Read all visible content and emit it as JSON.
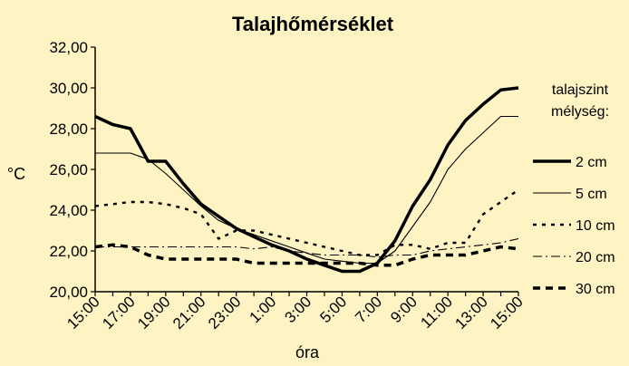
{
  "chart_data": {
    "type": "line",
    "title": "Talajhőmérséklet",
    "xlabel": "óra",
    "ylabel": "°C",
    "legend_title_line1": "talajszint",
    "legend_title_line2": "mélység:",
    "legend_position": "right",
    "grid": false,
    "ylim": [
      20,
      32
    ],
    "y_ticks": [
      "20,00",
      "22,00",
      "24,00",
      "26,00",
      "28,00",
      "30,00",
      "32,00"
    ],
    "x": [
      "15:00",
      "16:00",
      "17:00",
      "18:00",
      "19:00",
      "20:00",
      "21:00",
      "22:00",
      "23:00",
      "0:00",
      "1:00",
      "2:00",
      "3:00",
      "4:00",
      "5:00",
      "6:00",
      "7:00",
      "8:00",
      "9:00",
      "10:00",
      "11:00",
      "12:00",
      "13:00",
      "14:00",
      "15:00"
    ],
    "x_tick_labels": [
      "15:00",
      "17:00",
      "19:00",
      "21:00",
      "23:00",
      "1:00",
      "3:00",
      "5:00",
      "7:00",
      "9:00",
      "11:00",
      "13:00",
      "15:00"
    ],
    "series": [
      {
        "name": "2 cm",
        "style": "thick",
        "values": [
          28.6,
          28.2,
          28.0,
          26.4,
          26.4,
          25.3,
          24.3,
          23.7,
          23.1,
          22.7,
          22.3,
          22.0,
          21.6,
          21.3,
          21.0,
          21.0,
          21.4,
          22.5,
          24.2,
          25.5,
          27.2,
          28.4,
          29.2,
          29.9,
          30.0
        ]
      },
      {
        "name": "5 cm",
        "style": "thin",
        "values": [
          26.8,
          26.8,
          26.8,
          26.5,
          25.8,
          25.0,
          24.2,
          23.5,
          23.1,
          22.8,
          22.5,
          22.2,
          21.9,
          21.6,
          21.5,
          21.4,
          21.4,
          22.0,
          23.2,
          24.4,
          26.0,
          27.0,
          27.8,
          28.6,
          28.6
        ]
      },
      {
        "name": "10 cm",
        "style": "dotted",
        "values": [
          24.2,
          24.3,
          24.4,
          24.4,
          24.3,
          24.1,
          23.8,
          22.6,
          23.0,
          23.0,
          22.8,
          22.6,
          22.4,
          22.2,
          22.0,
          21.8,
          21.8,
          22.3,
          22.3,
          22.1,
          22.4,
          22.4,
          23.8,
          24.4,
          25.0
        ]
      },
      {
        "name": "20 cm",
        "style": "dashdot",
        "values": [
          22.2,
          22.2,
          22.2,
          22.2,
          22.2,
          22.2,
          22.2,
          22.2,
          22.2,
          22.1,
          22.2,
          22.0,
          21.9,
          21.8,
          21.8,
          21.8,
          21.7,
          21.8,
          21.8,
          22.0,
          22.1,
          22.2,
          22.3,
          22.4,
          22.6
        ]
      },
      {
        "name": "30 cm",
        "style": "dashed",
        "values": [
          22.2,
          22.3,
          22.2,
          21.8,
          21.6,
          21.6,
          21.6,
          21.6,
          21.6,
          21.4,
          21.4,
          21.4,
          21.4,
          21.4,
          21.4,
          21.4,
          21.3,
          21.3,
          21.6,
          21.8,
          21.8,
          21.8,
          22.0,
          22.2,
          22.1
        ]
      }
    ]
  }
}
